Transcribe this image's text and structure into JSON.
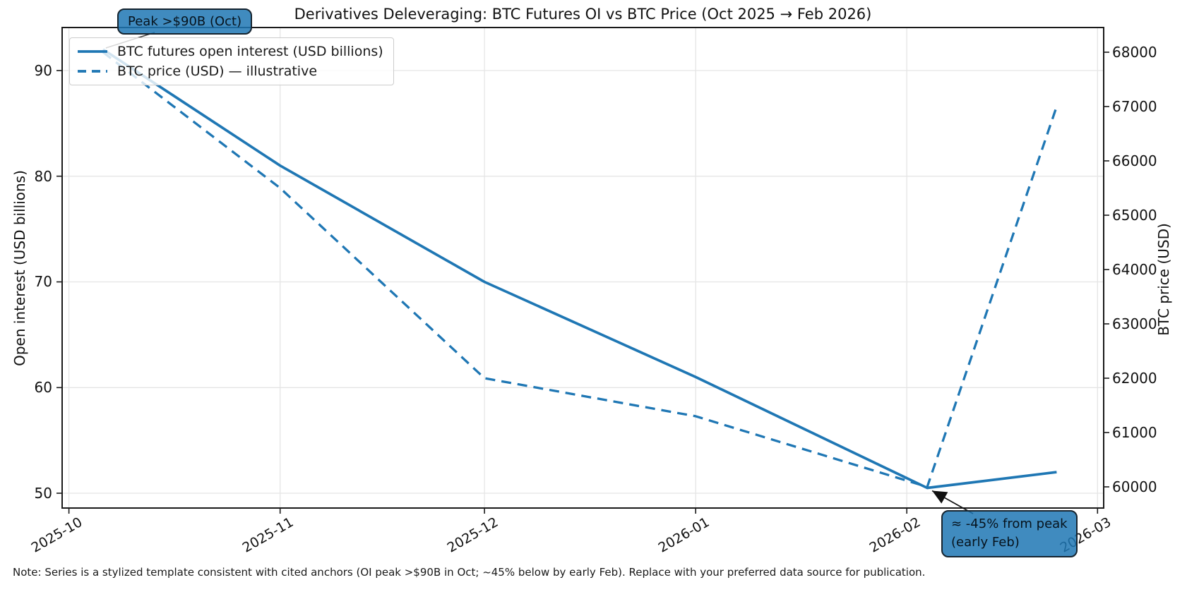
{
  "chart_data": {
    "type": "line",
    "title": "Derivatives Deleveraging: BTC Futures OI vs BTC Price (Oct 2025 → Feb 2026)",
    "x_dates": [
      "2025-10-06",
      "2025-11-01",
      "2025-12-01",
      "2026-01-01",
      "2026-02-04",
      "2026-02-23"
    ],
    "x_days": [
      5,
      31,
      61,
      92,
      126,
      145
    ],
    "series": [
      {
        "name": "BTC futures open interest (USD billions)",
        "axis": "left",
        "line_style": "solid",
        "color": "#1f77b4",
        "values": [
          92,
          81,
          70,
          61,
          50.5,
          52
        ]
      },
      {
        "name": "BTC price (USD) — illustrative",
        "axis": "right",
        "line_style": "dashed",
        "color": "#1f77b4",
        "values": [
          68000,
          65500,
          62000,
          61300,
          60000,
          67000
        ]
      }
    ],
    "left_axis": {
      "label": "Open interest (USD billions)",
      "ticks": [
        50,
        60,
        70,
        80,
        90
      ],
      "range": [
        48.6,
        94.07
      ]
    },
    "right_axis": {
      "label": "BTC price (USD)",
      "ticks": [
        60000,
        61000,
        62000,
        63000,
        64000,
        65000,
        66000,
        67000,
        68000
      ],
      "range": [
        59610,
        68455
      ]
    },
    "x_axis": {
      "tick_labels": [
        "2025-10",
        "2025-11",
        "2025-12",
        "2026-01",
        "2026-02",
        "2026-03"
      ],
      "tick_days": [
        0,
        31,
        61,
        92,
        123,
        151
      ],
      "range_days": [
        -1,
        151.9
      ]
    },
    "grid": true,
    "legend_position": "upper left"
  },
  "annotations": {
    "peak": {
      "text": "Peak >$90B (Oct)",
      "target": {
        "day": 5,
        "oi": 92
      }
    },
    "trough": {
      "line1": "≈ -45% from peak",
      "line2": "(early Feb)",
      "target": {
        "day": 126,
        "oi": 50.5
      }
    }
  },
  "note": "Note: Series is a stylized template consistent with cited anchors (OI peak >$90B in Oct; ~45% below by early Feb). Replace with your preferred data source for publication.",
  "colors": {
    "line": "#1f77b4",
    "annotation_fill": "#1f77b4",
    "annotation_border": "#16242f",
    "grid": "#e5e5e5",
    "spine": "#1a1a1a",
    "legend_border": "#cccccc"
  }
}
